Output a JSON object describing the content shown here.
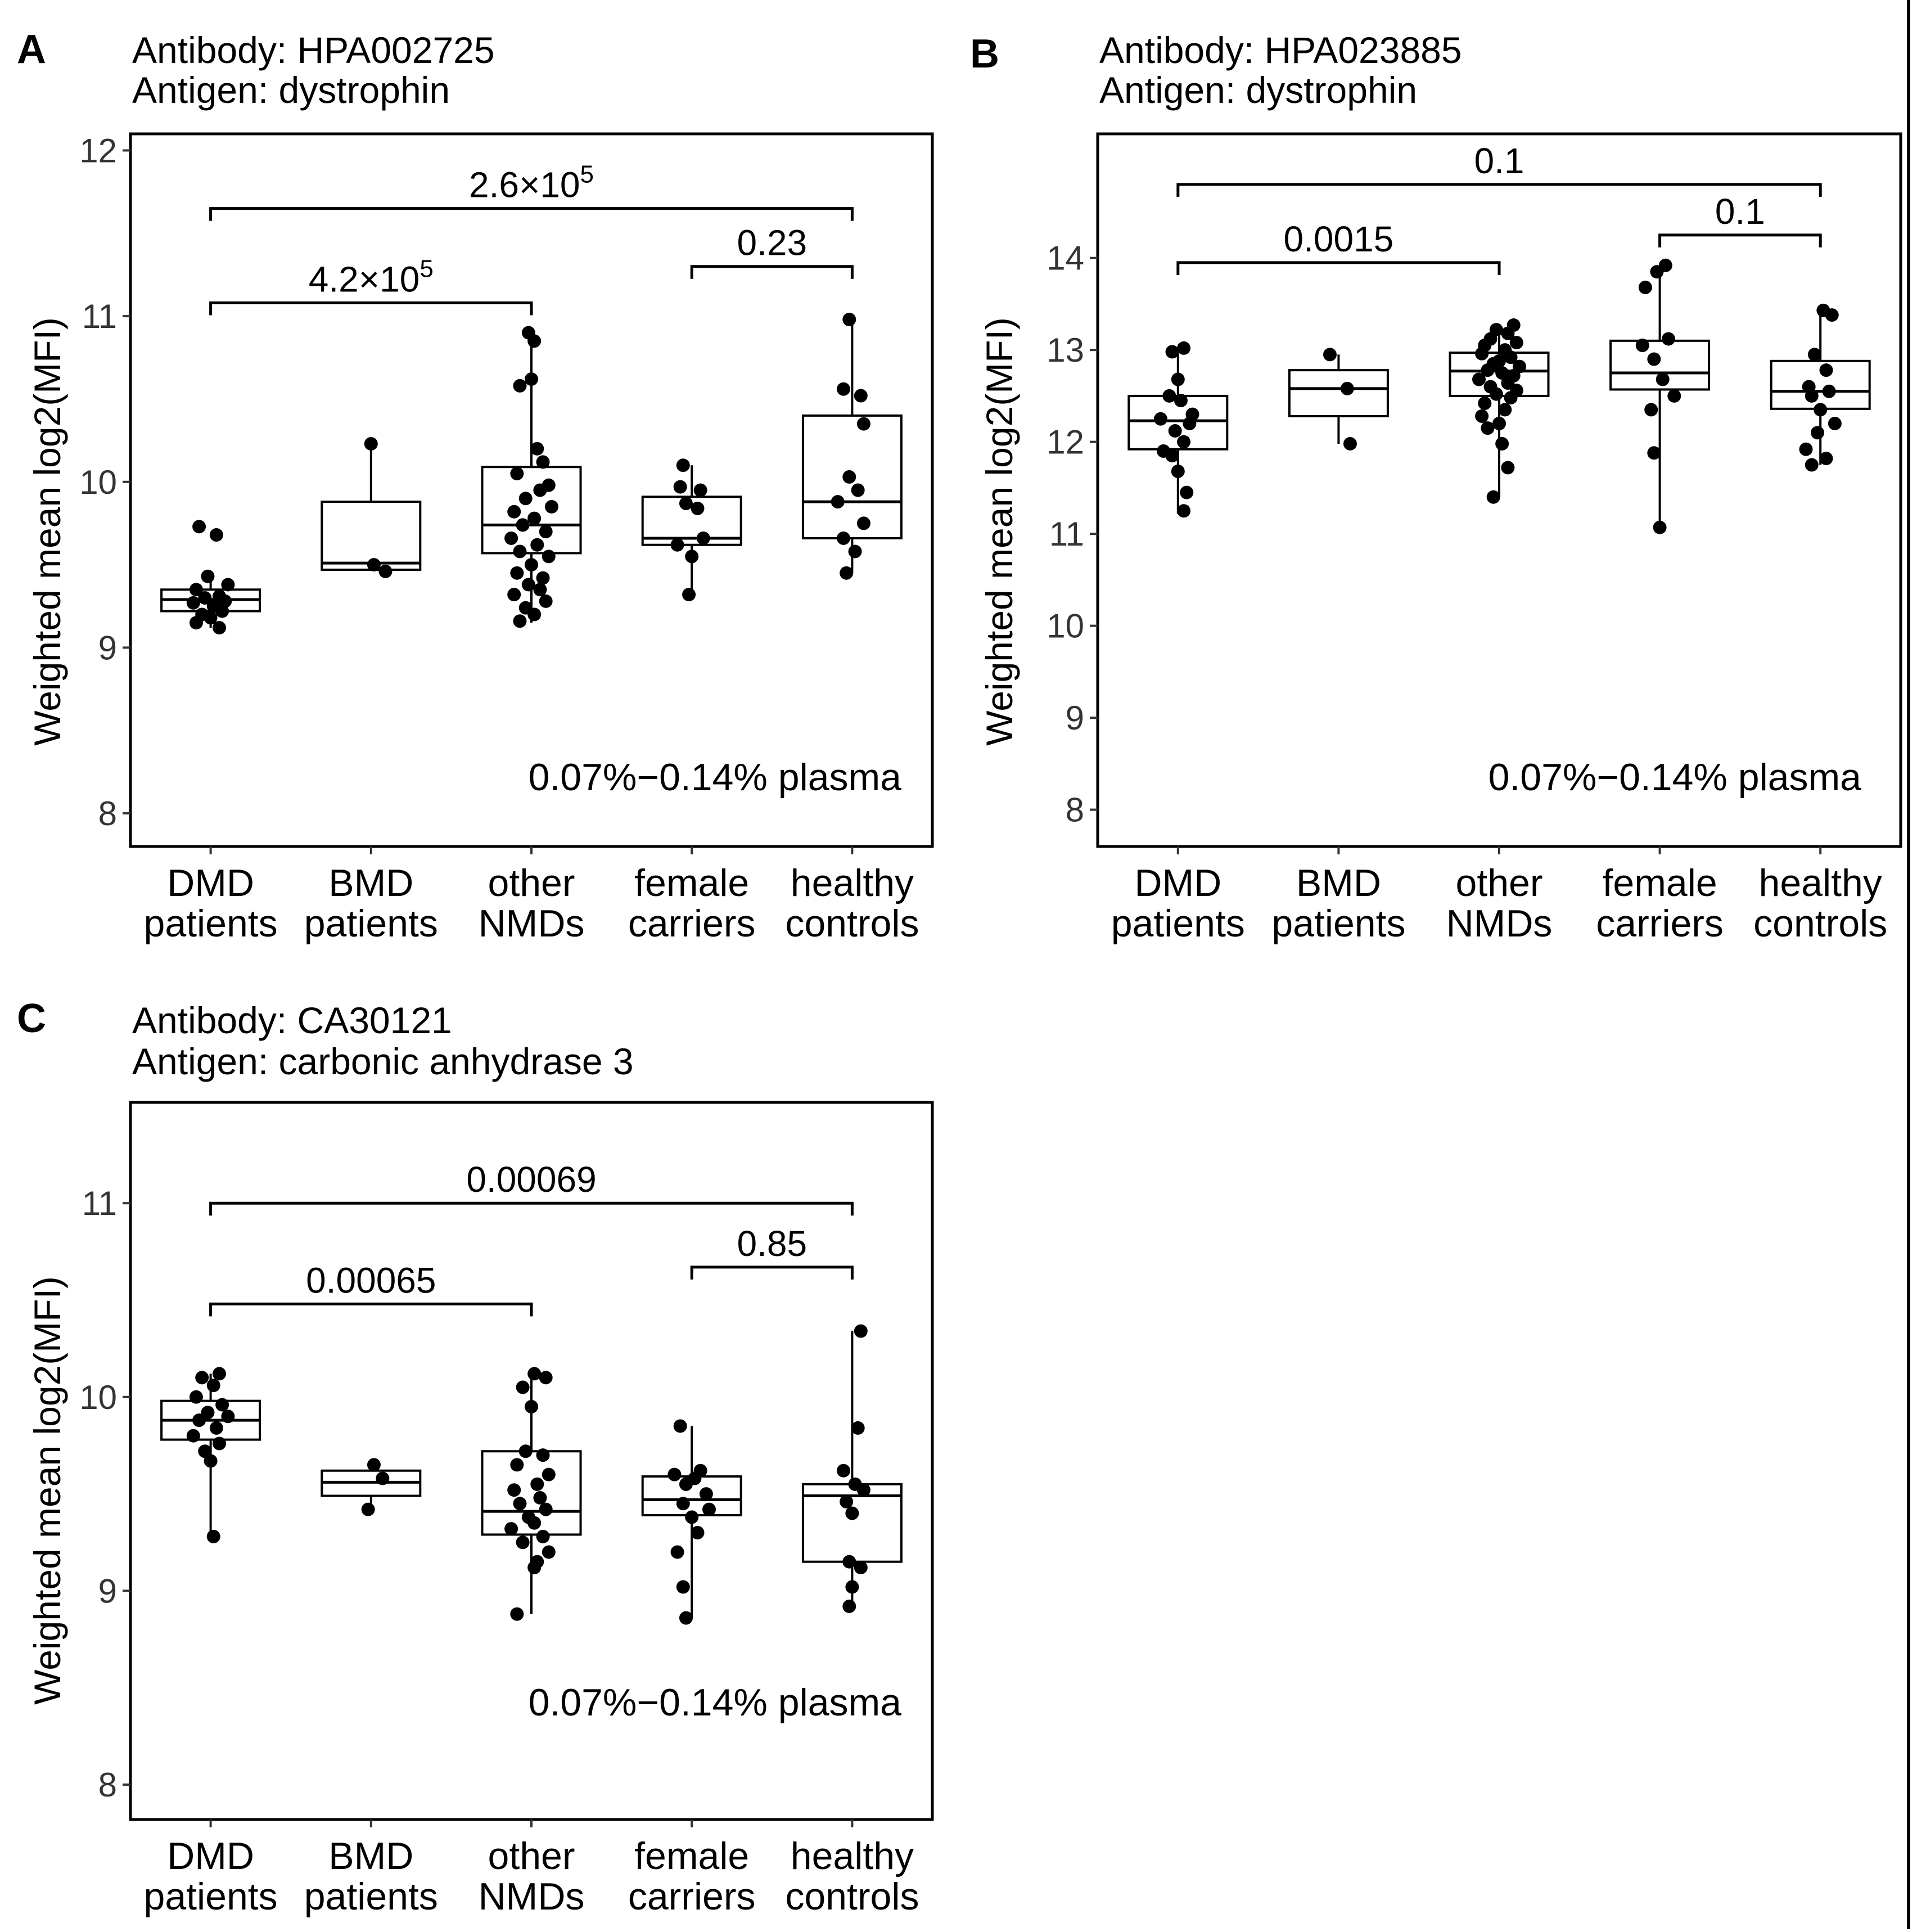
{
  "chart_data": [
    {
      "type": "box",
      "panel": "A",
      "antibody_line": "Antibody: HPA002725",
      "antigen_line": "Antigen: dystrophin",
      "ylabel": "Weighted mean log2(MFI)",
      "ylim": [
        7.8,
        12.1
      ],
      "yticks": [
        8,
        9,
        10,
        11,
        12
      ],
      "annotation": "0.07%−0.14% plasma",
      "categories": [
        {
          "line1": "DMD",
          "line2": "patients"
        },
        {
          "line1": "BMD",
          "line2": "patients"
        },
        {
          "line1": "other",
          "line2": "NMDs"
        },
        {
          "line1": "female",
          "line2": "carriers"
        },
        {
          "line1": "healthy",
          "line2": "controls"
        }
      ],
      "boxes": [
        {
          "q1": 9.22,
          "median": 9.29,
          "q3": 9.35,
          "lo": 9.12,
          "hi": 9.43
        },
        {
          "q1": 9.47,
          "median": 9.51,
          "q3": 9.88,
          "lo": 9.47,
          "hi": 10.23
        },
        {
          "q1": 9.57,
          "median": 9.74,
          "q3": 10.09,
          "lo": 9.15,
          "hi": 10.9
        },
        {
          "q1": 9.62,
          "median": 9.66,
          "q3": 9.91,
          "lo": 9.32,
          "hi": 10.1
        },
        {
          "q1": 9.66,
          "median": 9.88,
          "q3": 10.4,
          "lo": 9.45,
          "hi": 10.98
        }
      ],
      "points": [
        [
          9.73,
          9.68,
          9.43,
          9.38,
          9.35,
          9.31,
          9.3,
          9.28,
          9.27,
          9.25,
          9.22,
          9.2,
          9.18,
          9.15,
          9.12
        ],
        [
          10.23,
          9.5,
          9.46
        ],
        [
          10.9,
          10.85,
          10.62,
          10.58,
          10.2,
          10.12,
          10.05,
          9.98,
          9.95,
          9.9,
          9.85,
          9.82,
          9.78,
          9.74,
          9.7,
          9.66,
          9.62,
          9.58,
          9.55,
          9.5,
          9.45,
          9.42,
          9.38,
          9.35,
          9.32,
          9.28,
          9.24,
          9.2,
          9.16
        ],
        [
          10.1,
          9.97,
          9.95,
          9.87,
          9.84,
          9.66,
          9.62,
          9.55,
          9.32
        ],
        [
          10.98,
          10.56,
          10.52,
          10.35,
          10.03,
          9.95,
          9.88,
          9.75,
          9.66,
          9.58,
          9.45
        ]
      ],
      "jitter": [
        [
          -0.08,
          0.04,
          -0.02,
          0.12,
          -0.1,
          0.06,
          -0.04,
          0.1,
          -0.12,
          0.02,
          0.08,
          -0.06,
          0.0,
          -0.1,
          0.06
        ],
        [
          0.0,
          0.02,
          0.1
        ],
        [
          -0.02,
          0.02,
          0.0,
          -0.08,
          0.04,
          0.08,
          -0.1,
          0.12,
          0.06,
          -0.04,
          0.14,
          -0.12,
          0.02,
          -0.06,
          0.1,
          -0.14,
          0.04,
          -0.08,
          0.12,
          0.0,
          -0.1,
          0.08,
          -0.02,
          0.06,
          -0.12,
          0.1,
          -0.04,
          0.02,
          -0.08
        ],
        [
          -0.06,
          -0.08,
          0.06,
          -0.04,
          0.04,
          0.08,
          -0.1,
          0.0,
          -0.02
        ],
        [
          -0.02,
          -0.06,
          0.06,
          0.08,
          -0.02,
          0.04,
          -0.1,
          0.08,
          -0.06,
          0.02,
          -0.04
        ]
      ],
      "comparisons": [
        {
          "from": 0,
          "to": 4,
          "y": 11.65,
          "label": "2.6×10",
          "sup": "5"
        },
        {
          "from": 0,
          "to": 2,
          "y": 11.08,
          "label": "4.2×10",
          "sup": "5"
        },
        {
          "from": 3,
          "to": 4,
          "y": 11.3,
          "label": "0.23",
          "sup": ""
        }
      ]
    },
    {
      "type": "box",
      "panel": "B",
      "antibody_line": "Antibody: HPA023885",
      "antigen_line": "Antigen: dystrophin",
      "ylabel": "Weighted mean log2(MFI)",
      "ylim": [
        7.6,
        15.35
      ],
      "yticks": [
        8,
        9,
        10,
        11,
        12,
        13,
        14
      ],
      "annotation": "0.07%−0.14% plasma",
      "categories": [
        {
          "line1": "DMD",
          "line2": "patients"
        },
        {
          "line1": "BMD",
          "line2": "patients"
        },
        {
          "line1": "other",
          "line2": "NMDs"
        },
        {
          "line1": "female",
          "line2": "carriers"
        },
        {
          "line1": "healthy",
          "line2": "controls"
        }
      ],
      "boxes": [
        {
          "q1": 11.92,
          "median": 12.23,
          "q3": 12.5,
          "lo": 11.22,
          "hi": 13.02
        },
        {
          "q1": 12.28,
          "median": 12.58,
          "q3": 12.78,
          "lo": 11.98,
          "hi": 12.95
        },
        {
          "q1": 12.5,
          "median": 12.77,
          "q3": 12.97,
          "lo": 11.4,
          "hi": 13.27
        },
        {
          "q1": 12.57,
          "median": 12.75,
          "q3": 13.1,
          "lo": 11.07,
          "hi": 13.9
        },
        {
          "q1": 12.36,
          "median": 12.55,
          "q3": 12.88,
          "lo": 11.75,
          "hi": 13.43
        }
      ],
      "points": [
        [
          13.02,
          12.98,
          12.68,
          12.5,
          12.45,
          12.3,
          12.25,
          12.2,
          12.12,
          12.0,
          11.9,
          11.85,
          11.68,
          11.45,
          11.25
        ],
        [
          12.95,
          12.58,
          11.98
        ],
        [
          13.27,
          13.22,
          13.18,
          13.12,
          13.08,
          13.05,
          13.0,
          12.96,
          12.92,
          12.88,
          12.85,
          12.82,
          12.78,
          12.75,
          12.72,
          12.68,
          12.64,
          12.6,
          12.56,
          12.52,
          12.48,
          12.42,
          12.35,
          12.28,
          12.2,
          12.15,
          11.98,
          11.72,
          11.4
        ],
        [
          13.92,
          13.85,
          13.68,
          13.12,
          13.05,
          12.9,
          12.68,
          12.5,
          12.35,
          11.88,
          11.07
        ],
        [
          13.43,
          13.38,
          12.95,
          12.78,
          12.6,
          12.55,
          12.5,
          12.35,
          12.2,
          12.1,
          11.92,
          11.82,
          11.75
        ]
      ],
      "jitter": [
        [
          0.04,
          -0.04,
          0.0,
          -0.06,
          0.02,
          0.1,
          -0.12,
          0.08,
          -0.02,
          0.04,
          -0.1,
          -0.04,
          0.0,
          0.06,
          0.04
        ],
        [
          -0.06,
          0.06,
          0.08
        ],
        [
          0.1,
          -0.02,
          0.06,
          -0.06,
          0.12,
          -0.1,
          0.04,
          -0.12,
          0.08,
          0.0,
          -0.04,
          0.14,
          -0.08,
          0.02,
          0.1,
          -0.14,
          0.06,
          -0.06,
          0.12,
          -0.02,
          0.08,
          -0.1,
          0.04,
          -0.12,
          0.0,
          -0.08,
          0.02,
          0.06,
          -0.04
        ],
        [
          0.04,
          -0.02,
          -0.1,
          0.06,
          -0.12,
          -0.04,
          0.02,
          0.1,
          -0.06,
          -0.04,
          0.0
        ],
        [
          0.02,
          0.08,
          -0.04,
          0.04,
          -0.08,
          0.06,
          -0.06,
          0.0,
          0.1,
          -0.02,
          -0.1,
          0.04,
          -0.06
        ]
      ],
      "comparisons": [
        {
          "from": 0,
          "to": 4,
          "y": 14.8,
          "label": "0.1",
          "sup": ""
        },
        {
          "from": 0,
          "to": 2,
          "y": 13.95,
          "label": "0.0015",
          "sup": ""
        },
        {
          "from": 3,
          "to": 4,
          "y": 14.25,
          "label": "0.1",
          "sup": ""
        }
      ]
    },
    {
      "type": "box",
      "panel": "C",
      "antibody_line": "Antibody: CA30121",
      "antigen_line": "Antigen: carbonic anhydrase 3",
      "ylabel": "Weighted mean log2(MFI)",
      "ylim": [
        7.82,
        11.52
      ],
      "yticks": [
        8,
        9,
        10,
        11
      ],
      "annotation": "0.07%−0.14% plasma",
      "categories": [
        {
          "line1": "DMD",
          "line2": "patients"
        },
        {
          "line1": "BMD",
          "line2": "patients"
        },
        {
          "line1": "other",
          "line2": "NMDs"
        },
        {
          "line1": "female",
          "line2": "carriers"
        },
        {
          "line1": "healthy",
          "line2": "controls"
        }
      ],
      "boxes": [
        {
          "q1": 9.78,
          "median": 9.88,
          "q3": 9.98,
          "lo": 9.28,
          "hi": 10.12
        },
        {
          "q1": 9.49,
          "median": 9.56,
          "q3": 9.62,
          "lo": 9.42,
          "hi": 9.65
        },
        {
          "q1": 9.29,
          "median": 9.41,
          "q3": 9.72,
          "lo": 8.88,
          "hi": 10.12
        },
        {
          "q1": 9.39,
          "median": 9.47,
          "q3": 9.59,
          "lo": 8.86,
          "hi": 9.85
        },
        {
          "q1": 9.15,
          "median": 9.49,
          "q3": 9.55,
          "lo": 8.92,
          "hi": 10.34
        }
      ],
      "points": [
        [
          10.12,
          10.1,
          10.06,
          10.0,
          9.96,
          9.92,
          9.9,
          9.88,
          9.84,
          9.8,
          9.76,
          9.72,
          9.67,
          9.28
        ],
        [
          9.65,
          9.58,
          9.42
        ],
        [
          10.12,
          10.1,
          10.05,
          9.95,
          9.72,
          9.7,
          9.65,
          9.6,
          9.55,
          9.52,
          9.48,
          9.45,
          9.42,
          9.38,
          9.35,
          9.32,
          9.28,
          9.25,
          9.2,
          9.15,
          9.12,
          8.88
        ],
        [
          9.85,
          9.62,
          9.6,
          9.58,
          9.55,
          9.5,
          9.45,
          9.42,
          9.38,
          9.3,
          9.2,
          9.02,
          8.86
        ],
        [
          10.34,
          9.84,
          9.62,
          9.55,
          9.52,
          9.46,
          9.4,
          9.15,
          9.12,
          9.02,
          8.92
        ]
      ],
      "jitter": [
        [
          0.06,
          -0.06,
          0.02,
          -0.1,
          0.08,
          -0.02,
          0.12,
          -0.08,
          0.04,
          -0.12,
          0.06,
          -0.04,
          0.0,
          0.02
        ],
        [
          0.02,
          0.08,
          -0.02
        ],
        [
          0.02,
          0.1,
          -0.06,
          0.0,
          -0.04,
          0.08,
          -0.1,
          0.12,
          0.04,
          -0.12,
          0.06,
          -0.08,
          0.1,
          -0.02,
          0.02,
          -0.14,
          0.08,
          -0.06,
          0.12,
          0.04,
          0.02,
          -0.1
        ],
        [
          -0.08,
          0.06,
          -0.12,
          0.02,
          -0.04,
          0.1,
          -0.06,
          0.12,
          0.0,
          0.04,
          -0.1,
          -0.06,
          -0.04
        ],
        [
          0.06,
          0.04,
          -0.06,
          0.02,
          0.08,
          -0.04,
          0.0,
          -0.02,
          0.06,
          0.0,
          -0.02
        ]
      ],
      "comparisons": [
        {
          "from": 0,
          "to": 4,
          "y": 11.0,
          "label": "0.00069",
          "sup": ""
        },
        {
          "from": 0,
          "to": 2,
          "y": 10.48,
          "label": "0.00065",
          "sup": ""
        },
        {
          "from": 3,
          "to": 4,
          "y": 10.67,
          "label": "0.85",
          "sup": ""
        }
      ]
    }
  ]
}
